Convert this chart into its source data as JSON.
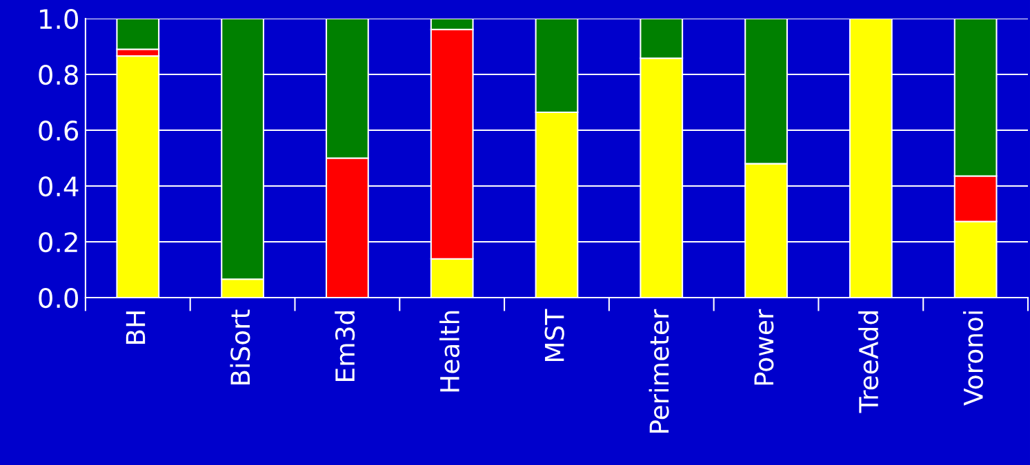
{
  "chart_data": {
    "type": "bar",
    "stacked": true,
    "categories": [
      "BH",
      "BiSort",
      "Em3d",
      "Health",
      "MST",
      "Perimeter",
      "Power",
      "TreeAdd",
      "Voronoi"
    ],
    "series": [
      {
        "color": "#ffff00",
        "values": [
          0.866,
          0.066,
          null,
          0.139,
          0.664,
          0.858,
          0.48,
          1.0,
          0.273
        ]
      },
      {
        "color": "#ff0000",
        "values": [
          0.024,
          null,
          0.5,
          0.822,
          null,
          null,
          null,
          null,
          0.163
        ]
      },
      {
        "color": "#008000",
        "values": [
          0.11,
          0.934,
          0.5,
          0.039,
          0.336,
          0.142,
          0.52,
          null,
          0.564
        ]
      }
    ],
    "ylim": [
      0,
      1.0
    ],
    "yticks": [
      {
        "value": 0,
        "label": "0.0"
      },
      {
        "value": 0.2,
        "label": "0.2"
      },
      {
        "value": 0.4,
        "label": "0.4"
      },
      {
        "value": 0.6,
        "label": "0.6"
      },
      {
        "value": 0.8,
        "label": "0.8"
      },
      {
        "value": 1.0,
        "label": "1.0"
      }
    ],
    "grid": "y",
    "legend": false
  }
}
